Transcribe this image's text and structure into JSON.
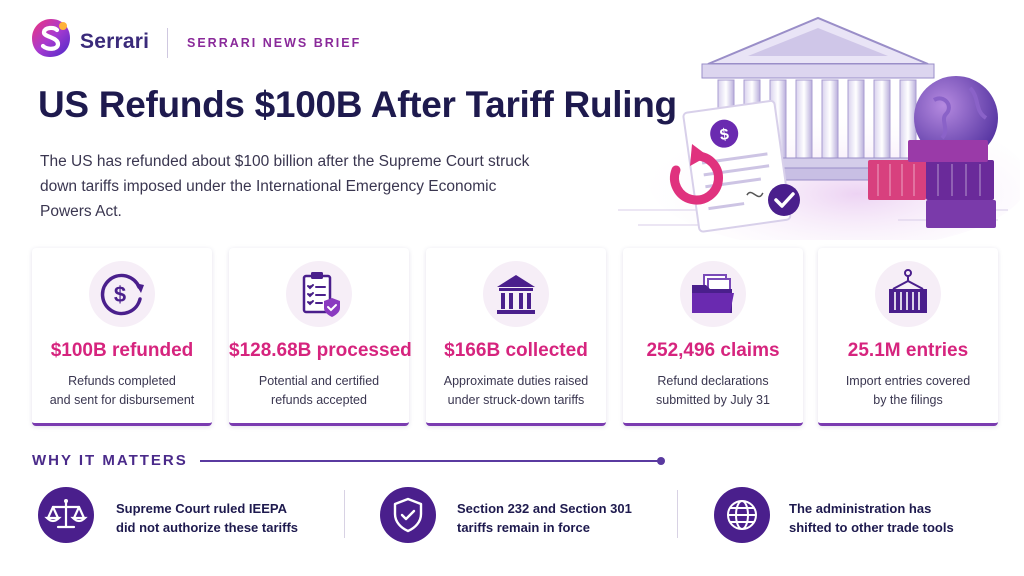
{
  "header": {
    "brand": "Serrari",
    "section": "SERRARI NEWS BRIEF"
  },
  "headline": {
    "title": "US Refunds $100B After Tariff Ruling",
    "subtitle": "The US has refunded about $100 billion after the Supreme Court struck down tariffs imposed under the International Emergency Economic Powers Act."
  },
  "stats": [
    {
      "icon": "dollar-refund-icon",
      "value": "$100B refunded",
      "line1": "Refunds completed",
      "line2": "and sent for disbursement"
    },
    {
      "icon": "clipboard-check-icon",
      "value": "$128.68B processed",
      "line1": "Potential and certified",
      "line2": "refunds accepted"
    },
    {
      "icon": "government-building-icon",
      "value": "$166B collected",
      "line1": "Approximate duties raised",
      "line2": "under struck-down tariffs"
    },
    {
      "icon": "folder-documents-icon",
      "value": "252,496 claims",
      "line1": "Refund declarations",
      "line2": "submitted by July 31"
    },
    {
      "icon": "shipping-container-icon",
      "value": "25.1M entries",
      "line1": "Import entries covered",
      "line2": "by the filings"
    }
  ],
  "why_it_matters": {
    "heading": "WHY IT MATTERS",
    "points": [
      {
        "icon": "scales-icon",
        "line1": "Supreme Court ruled IEEPA",
        "line2": "did not authorize these tariffs"
      },
      {
        "icon": "shield-check-icon",
        "line1": "Section 232 and Section 301",
        "line2": "tariffs remain in force"
      },
      {
        "icon": "globe-icon",
        "line1": "The administration has",
        "line2": "shifted to other trade tools"
      }
    ]
  },
  "colors": {
    "accent_magenta": "#d6247e",
    "accent_purple": "#4a1f8c",
    "title_navy": "#1e1a4e"
  }
}
